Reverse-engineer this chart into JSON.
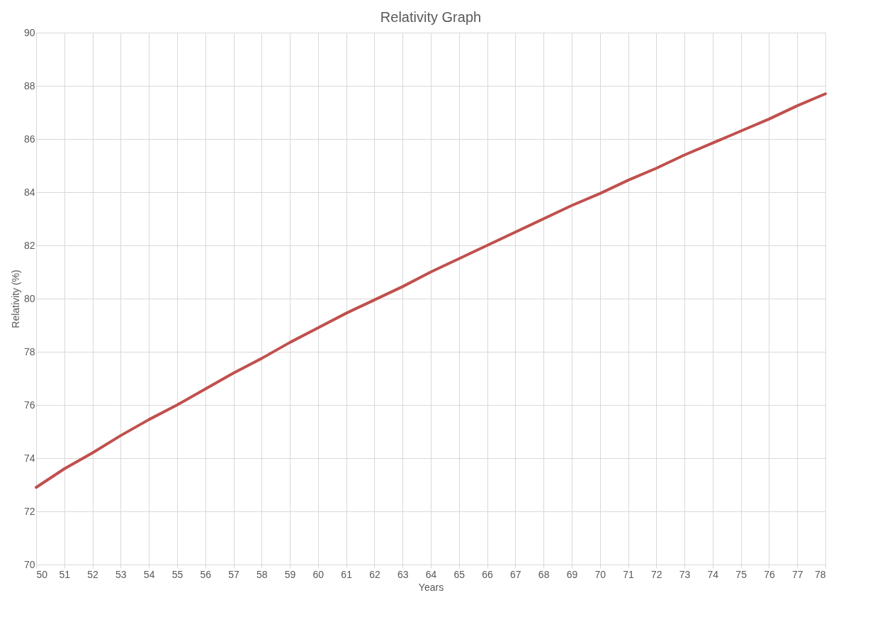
{
  "chart_data": {
    "type": "line",
    "title": "Relativity Graph",
    "xlabel": "Years",
    "ylabel": "Relativity (%)",
    "x": [
      50,
      51,
      52,
      53,
      54,
      55,
      56,
      57,
      58,
      59,
      60,
      61,
      62,
      63,
      64,
      65,
      66,
      67,
      68,
      69,
      70,
      71,
      72,
      73,
      74,
      75,
      76,
      77,
      78
    ],
    "series": [
      {
        "color": "#c0504d",
        "values": [
          72.9,
          73.6,
          74.2,
          74.85,
          75.45,
          76.0,
          76.6,
          77.2,
          77.75,
          78.35,
          78.9,
          79.45,
          79.95,
          80.45,
          81.0,
          81.5,
          82.0,
          82.5,
          83.0,
          83.5,
          83.95,
          84.45,
          84.9,
          85.4,
          85.85,
          86.3,
          86.75,
          87.25,
          87.7
        ]
      }
    ],
    "xlim": [
      50,
      78
    ],
    "xticks": [
      50,
      51,
      52,
      53,
      54,
      55,
      56,
      57,
      58,
      59,
      60,
      61,
      62,
      63,
      64,
      65,
      66,
      67,
      68,
      69,
      70,
      71,
      72,
      73,
      74,
      75,
      76,
      77,
      78
    ],
    "ylim": [
      70,
      90
    ],
    "yticks": [
      70,
      72,
      74,
      76,
      78,
      80,
      82,
      84,
      86,
      88,
      90
    ],
    "grid": true,
    "legend": false,
    "marker": "none",
    "line_style": "solid"
  }
}
